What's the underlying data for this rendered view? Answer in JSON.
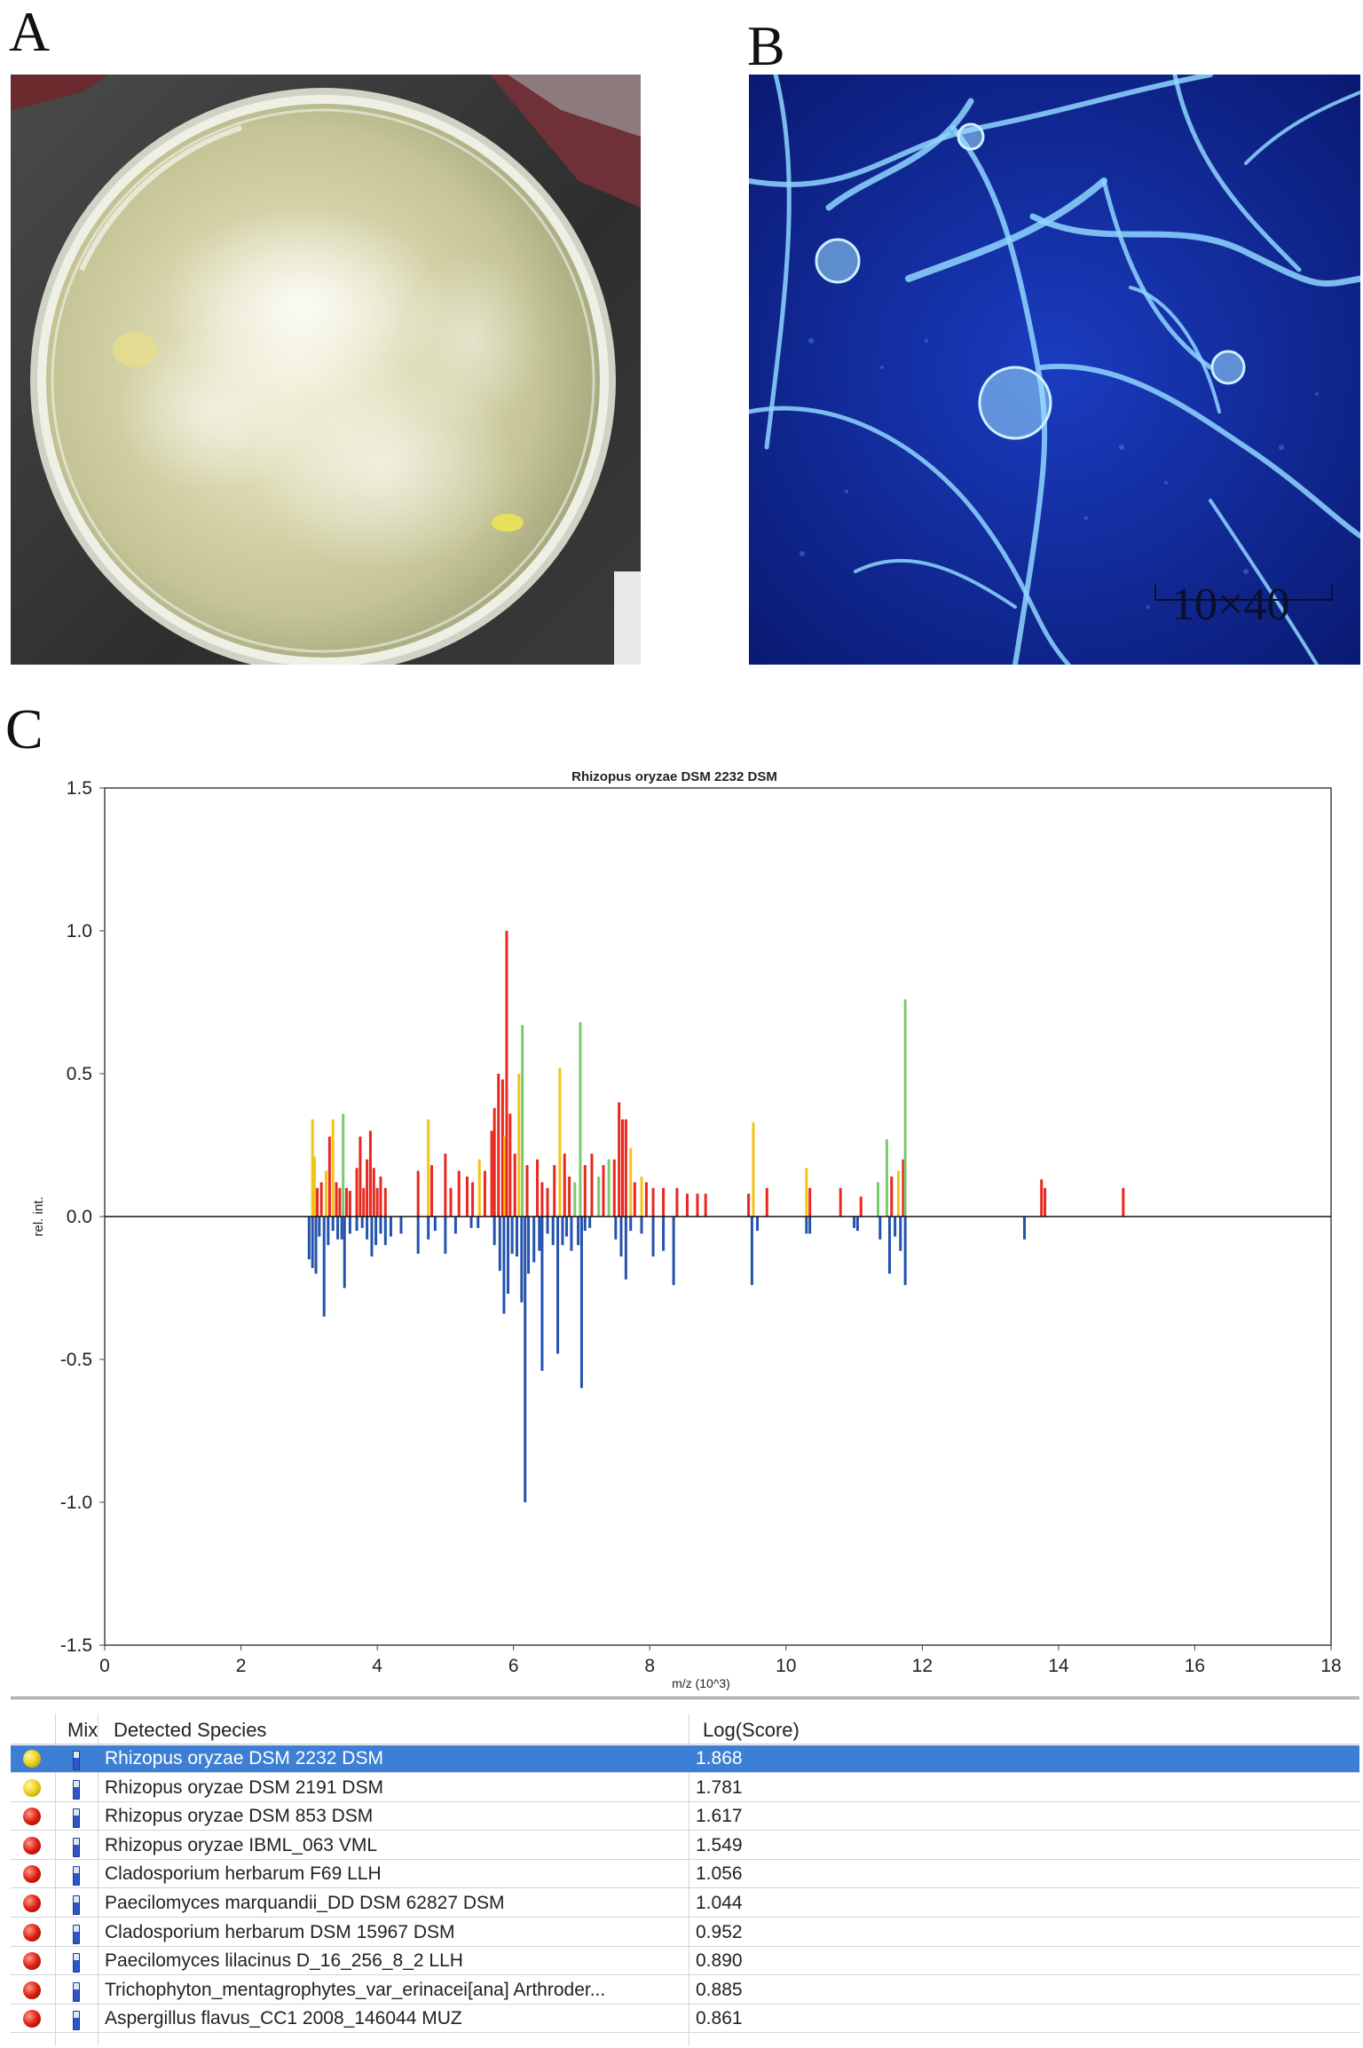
{
  "panels": {
    "a": "A",
    "b": "B",
    "c": "C"
  },
  "microscopy": {
    "scale_label": "10×40"
  },
  "chart_data": {
    "type": "bar",
    "title": "Rhizopus oryzae DSM 2232 DSM",
    "xlabel": "m/z (10^3)",
    "ylabel": "rel. int.",
    "xlim": [
      0,
      18
    ],
    "ylim": [
      -1.5,
      1.5
    ],
    "x_ticks": [
      "0",
      "2",
      "4",
      "6",
      "8",
      "10",
      "12",
      "14",
      "16",
      "18"
    ],
    "y_ticks": [
      "1.5",
      "1.0",
      "0.5",
      "0.0",
      "-0.5",
      "-1.0",
      "-1.5"
    ],
    "colors": {
      "red": "#e8281e",
      "yellow": "#f2c418",
      "green": "#7dc96d",
      "blue": "#2452ad"
    },
    "series": [
      {
        "color_key": "sample_upper",
        "peaks": [
          {
            "x": 3.05,
            "y": 0.34,
            "c": "yellow"
          },
          {
            "x": 3.08,
            "y": 0.21,
            "c": "yellow"
          },
          {
            "x": 3.12,
            "y": 0.1,
            "c": "red"
          },
          {
            "x": 3.18,
            "y": 0.12,
            "c": "red"
          },
          {
            "x": 3.25,
            "y": 0.16,
            "c": "yellow"
          },
          {
            "x": 3.3,
            "y": 0.28,
            "c": "red"
          },
          {
            "x": 3.35,
            "y": 0.34,
            "c": "yellow"
          },
          {
            "x": 3.4,
            "y": 0.12,
            "c": "red"
          },
          {
            "x": 3.45,
            "y": 0.1,
            "c": "red"
          },
          {
            "x": 3.5,
            "y": 0.36,
            "c": "green"
          },
          {
            "x": 3.55,
            "y": 0.1,
            "c": "red"
          },
          {
            "x": 3.6,
            "y": 0.09,
            "c": "red"
          },
          {
            "x": 3.7,
            "y": 0.17,
            "c": "red"
          },
          {
            "x": 3.75,
            "y": 0.28,
            "c": "red"
          },
          {
            "x": 3.8,
            "y": 0.1,
            "c": "red"
          },
          {
            "x": 3.85,
            "y": 0.2,
            "c": "red"
          },
          {
            "x": 3.9,
            "y": 0.3,
            "c": "red"
          },
          {
            "x": 3.95,
            "y": 0.17,
            "c": "red"
          },
          {
            "x": 4.0,
            "y": 0.1,
            "c": "red"
          },
          {
            "x": 4.05,
            "y": 0.14,
            "c": "red"
          },
          {
            "x": 4.12,
            "y": 0.1,
            "c": "red"
          },
          {
            "x": 4.6,
            "y": 0.16,
            "c": "red"
          },
          {
            "x": 4.75,
            "y": 0.34,
            "c": "yellow"
          },
          {
            "x": 4.8,
            "y": 0.18,
            "c": "red"
          },
          {
            "x": 5.0,
            "y": 0.22,
            "c": "red"
          },
          {
            "x": 5.08,
            "y": 0.1,
            "c": "red"
          },
          {
            "x": 5.2,
            "y": 0.16,
            "c": "red"
          },
          {
            "x": 5.32,
            "y": 0.14,
            "c": "red"
          },
          {
            "x": 5.4,
            "y": 0.12,
            "c": "red"
          },
          {
            "x": 5.5,
            "y": 0.2,
            "c": "yellow"
          },
          {
            "x": 5.58,
            "y": 0.16,
            "c": "red"
          },
          {
            "x": 5.68,
            "y": 0.3,
            "c": "red"
          },
          {
            "x": 5.72,
            "y": 0.38,
            "c": "red"
          },
          {
            "x": 5.78,
            "y": 0.5,
            "c": "red"
          },
          {
            "x": 5.84,
            "y": 0.48,
            "c": "red"
          },
          {
            "x": 5.87,
            "y": 0.28,
            "c": "yellow"
          },
          {
            "x": 5.9,
            "y": 1.0,
            "c": "red"
          },
          {
            "x": 5.95,
            "y": 0.36,
            "c": "red"
          },
          {
            "x": 6.02,
            "y": 0.22,
            "c": "red"
          },
          {
            "x": 6.08,
            "y": 0.5,
            "c": "yellow"
          },
          {
            "x": 6.13,
            "y": 0.67,
            "c": "green"
          },
          {
            "x": 6.2,
            "y": 0.18,
            "c": "red"
          },
          {
            "x": 6.35,
            "y": 0.2,
            "c": "red"
          },
          {
            "x": 6.42,
            "y": 0.12,
            "c": "red"
          },
          {
            "x": 6.5,
            "y": 0.1,
            "c": "red"
          },
          {
            "x": 6.6,
            "y": 0.18,
            "c": "red"
          },
          {
            "x": 6.68,
            "y": 0.52,
            "c": "yellow"
          },
          {
            "x": 6.75,
            "y": 0.22,
            "c": "red"
          },
          {
            "x": 6.82,
            "y": 0.14,
            "c": "red"
          },
          {
            "x": 6.9,
            "y": 0.12,
            "c": "green"
          },
          {
            "x": 6.98,
            "y": 0.68,
            "c": "green"
          },
          {
            "x": 7.05,
            "y": 0.18,
            "c": "red"
          },
          {
            "x": 7.15,
            "y": 0.22,
            "c": "red"
          },
          {
            "x": 7.25,
            "y": 0.14,
            "c": "green"
          },
          {
            "x": 7.32,
            "y": 0.18,
            "c": "red"
          },
          {
            "x": 7.4,
            "y": 0.2,
            "c": "green"
          },
          {
            "x": 7.48,
            "y": 0.2,
            "c": "red"
          },
          {
            "x": 7.55,
            "y": 0.4,
            "c": "red"
          },
          {
            "x": 7.6,
            "y": 0.34,
            "c": "red"
          },
          {
            "x": 7.65,
            "y": 0.34,
            "c": "red"
          },
          {
            "x": 7.72,
            "y": 0.24,
            "c": "yellow"
          },
          {
            "x": 7.78,
            "y": 0.12,
            "c": "red"
          },
          {
            "x": 7.88,
            "y": 0.14,
            "c": "yellow"
          },
          {
            "x": 7.95,
            "y": 0.12,
            "c": "red"
          },
          {
            "x": 8.05,
            "y": 0.1,
            "c": "red"
          },
          {
            "x": 8.2,
            "y": 0.1,
            "c": "red"
          },
          {
            "x": 8.4,
            "y": 0.1,
            "c": "red"
          },
          {
            "x": 8.55,
            "y": 0.08,
            "c": "red"
          },
          {
            "x": 8.7,
            "y": 0.08,
            "c": "red"
          },
          {
            "x": 8.82,
            "y": 0.08,
            "c": "red"
          },
          {
            "x": 9.45,
            "y": 0.08,
            "c": "red"
          },
          {
            "x": 9.52,
            "y": 0.33,
            "c": "yellow"
          },
          {
            "x": 9.72,
            "y": 0.1,
            "c": "red"
          },
          {
            "x": 10.3,
            "y": 0.17,
            "c": "yellow"
          },
          {
            "x": 10.35,
            "y": 0.1,
            "c": "red"
          },
          {
            "x": 10.8,
            "y": 0.1,
            "c": "red"
          },
          {
            "x": 11.1,
            "y": 0.07,
            "c": "red"
          },
          {
            "x": 11.35,
            "y": 0.12,
            "c": "green"
          },
          {
            "x": 11.48,
            "y": 0.27,
            "c": "green"
          },
          {
            "x": 11.55,
            "y": 0.14,
            "c": "red"
          },
          {
            "x": 11.65,
            "y": 0.16,
            "c": "yellow"
          },
          {
            "x": 11.72,
            "y": 0.2,
            "c": "red"
          },
          {
            "x": 11.75,
            "y": 0.76,
            "c": "green"
          },
          {
            "x": 13.75,
            "y": 0.13,
            "c": "red"
          },
          {
            "x": 13.8,
            "y": 0.1,
            "c": "red"
          },
          {
            "x": 14.95,
            "y": 0.1,
            "c": "red"
          }
        ]
      },
      {
        "color_key": "reference_lower",
        "peaks": [
          {
            "x": 3.0,
            "y": -0.15
          },
          {
            "x": 3.05,
            "y": -0.18
          },
          {
            "x": 3.1,
            "y": -0.2
          },
          {
            "x": 3.15,
            "y": -0.07
          },
          {
            "x": 3.22,
            "y": -0.35
          },
          {
            "x": 3.28,
            "y": -0.1
          },
          {
            "x": 3.35,
            "y": -0.05
          },
          {
            "x": 3.42,
            "y": -0.08
          },
          {
            "x": 3.48,
            "y": -0.08
          },
          {
            "x": 3.52,
            "y": -0.25
          },
          {
            "x": 3.6,
            "y": -0.06
          },
          {
            "x": 3.7,
            "y": -0.05
          },
          {
            "x": 3.78,
            "y": -0.04
          },
          {
            "x": 3.85,
            "y": -0.08
          },
          {
            "x": 3.92,
            "y": -0.14
          },
          {
            "x": 3.98,
            "y": -0.1
          },
          {
            "x": 4.05,
            "y": -0.06
          },
          {
            "x": 4.12,
            "y": -0.1
          },
          {
            "x": 4.2,
            "y": -0.07
          },
          {
            "x": 4.35,
            "y": -0.06
          },
          {
            "x": 4.6,
            "y": -0.13
          },
          {
            "x": 4.75,
            "y": -0.08
          },
          {
            "x": 4.85,
            "y": -0.05
          },
          {
            "x": 5.0,
            "y": -0.13
          },
          {
            "x": 5.15,
            "y": -0.06
          },
          {
            "x": 5.38,
            "y": -0.04
          },
          {
            "x": 5.48,
            "y": -0.04
          },
          {
            "x": 5.72,
            "y": -0.1
          },
          {
            "x": 5.8,
            "y": -0.19
          },
          {
            "x": 5.86,
            "y": -0.34
          },
          {
            "x": 5.92,
            "y": -0.27
          },
          {
            "x": 5.98,
            "y": -0.13
          },
          {
            "x": 6.05,
            "y": -0.14
          },
          {
            "x": 6.12,
            "y": -0.3
          },
          {
            "x": 6.17,
            "y": -1.0
          },
          {
            "x": 6.22,
            "y": -0.2
          },
          {
            "x": 6.3,
            "y": -0.16
          },
          {
            "x": 6.38,
            "y": -0.12
          },
          {
            "x": 6.42,
            "y": -0.54
          },
          {
            "x": 6.5,
            "y": -0.06
          },
          {
            "x": 6.58,
            "y": -0.1
          },
          {
            "x": 6.65,
            "y": -0.48
          },
          {
            "x": 6.72,
            "y": -0.1
          },
          {
            "x": 6.78,
            "y": -0.07
          },
          {
            "x": 6.85,
            "y": -0.12
          },
          {
            "x": 6.95,
            "y": -0.1
          },
          {
            "x": 7.0,
            "y": -0.6
          },
          {
            "x": 7.05,
            "y": -0.05
          },
          {
            "x": 7.12,
            "y": -0.04
          },
          {
            "x": 7.5,
            "y": -0.08
          },
          {
            "x": 7.58,
            "y": -0.14
          },
          {
            "x": 7.65,
            "y": -0.22
          },
          {
            "x": 7.72,
            "y": -0.05
          },
          {
            "x": 7.88,
            "y": -0.06
          },
          {
            "x": 8.05,
            "y": -0.14
          },
          {
            "x": 8.2,
            "y": -0.12
          },
          {
            "x": 8.35,
            "y": -0.24
          },
          {
            "x": 9.5,
            "y": -0.24
          },
          {
            "x": 9.58,
            "y": -0.05
          },
          {
            "x": 10.3,
            "y": -0.06
          },
          {
            "x": 10.35,
            "y": -0.06
          },
          {
            "x": 11.0,
            "y": -0.04
          },
          {
            "x": 11.05,
            "y": -0.05
          },
          {
            "x": 11.38,
            "y": -0.08
          },
          {
            "x": 11.52,
            "y": -0.2
          },
          {
            "x": 11.6,
            "y": -0.07
          },
          {
            "x": 11.68,
            "y": -0.12
          },
          {
            "x": 11.75,
            "y": -0.24
          },
          {
            "x": 13.5,
            "y": -0.08
          }
        ]
      }
    ]
  },
  "results_table": {
    "headers": {
      "mix": "Mix",
      "species": "Detected Species",
      "score": "Log(Score)"
    },
    "rows": [
      {
        "status": "yellow",
        "species": "Rhizopus oryzae DSM 2232 DSM",
        "score": "1.868",
        "selected": true
      },
      {
        "status": "yellow",
        "species": "Rhizopus oryzae DSM 2191 DSM",
        "score": "1.781"
      },
      {
        "status": "red",
        "species": "Rhizopus oryzae DSM 853 DSM",
        "score": "1.617"
      },
      {
        "status": "red",
        "species": "Rhizopus oryzae IBML_063 VML",
        "score": "1.549"
      },
      {
        "status": "red",
        "species": "Cladosporium herbarum F69 LLH",
        "score": "1.056"
      },
      {
        "status": "red",
        "species": "Paecilomyces marquandii_DD DSM 62827 DSM",
        "score": "1.044"
      },
      {
        "status": "red",
        "species": "Cladosporium herbarum DSM 15967 DSM",
        "score": "0.952"
      },
      {
        "status": "red",
        "species": "Paecilomyces lilacinus D_16_256_8_2 LLH",
        "score": "0.890"
      },
      {
        "status": "red",
        "species": "Trichophyton_mentagrophytes_var_erinacei[ana] Arthroder...",
        "score": "0.885"
      },
      {
        "status": "red",
        "species": "Aspergillus flavus_CC1 2008_146044 MUZ",
        "score": "0.861"
      }
    ]
  }
}
